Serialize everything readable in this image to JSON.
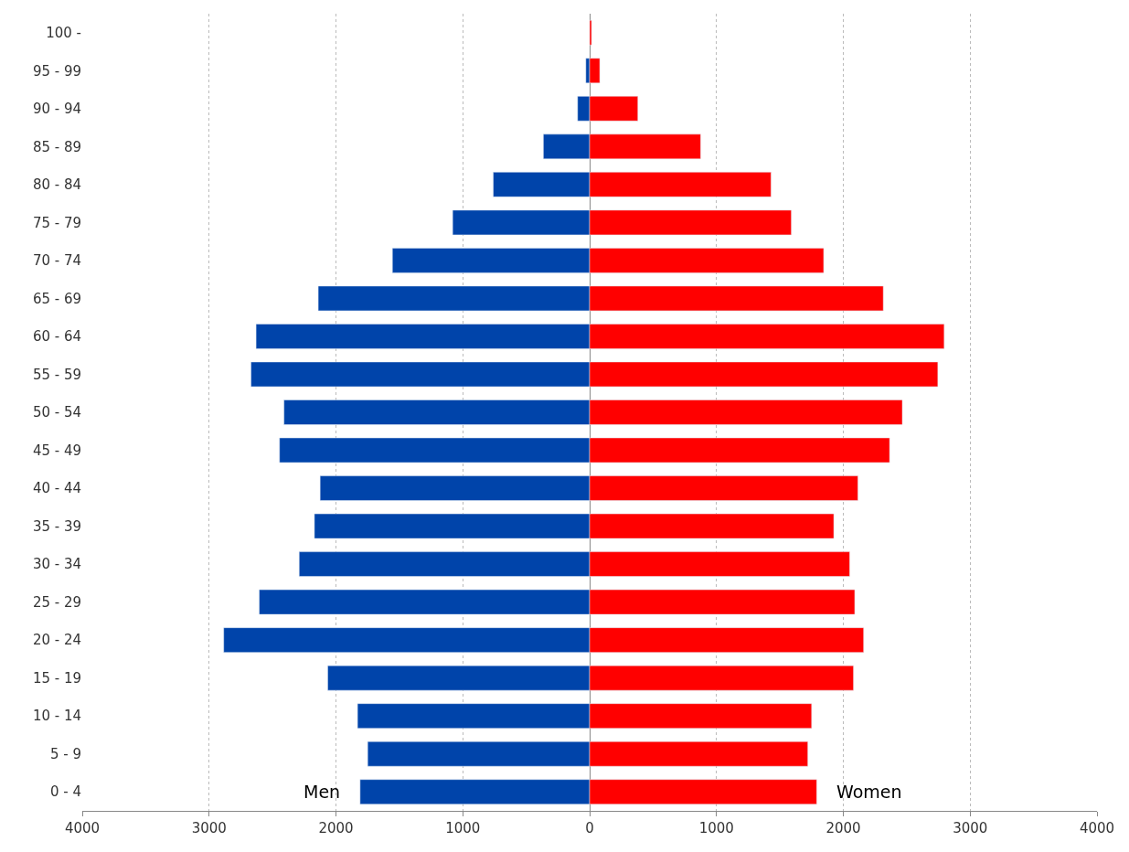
{
  "chart_data": {
    "type": "bar",
    "orientation": "horizontal",
    "categories": [
      "100 -",
      "95 - 99",
      "90 - 94",
      "85 - 89",
      "80 - 84",
      "75 - 79",
      "70 - 74",
      "65 - 69",
      "60 - 64",
      "55 - 59",
      "50 - 54",
      "45 - 49",
      "40 - 44",
      "35 - 39",
      "30 - 34",
      "25 - 29",
      "20 - 24",
      "15 - 19",
      "10 - 14",
      "5 - 9",
      "0 - 4"
    ],
    "series": [
      {
        "name": "Men",
        "color": "#0044aa",
        "values": [
          null,
          -30,
          -95,
          -365,
          -760,
          -1080,
          -1555,
          -2140,
          -2630,
          -2670,
          -2410,
          -2445,
          -2125,
          -2170,
          -2290,
          -2605,
          -2885,
          -2065,
          -1830,
          -1750,
          -1810
        ]
      },
      {
        "name": "Women",
        "color": "#ff0000",
        "values": [
          15,
          80,
          380,
          875,
          1430,
          1590,
          1845,
          2315,
          2795,
          2745,
          2465,
          2365,
          2115,
          1925,
          2050,
          2090,
          2160,
          2080,
          1750,
          1720,
          1790
        ]
      }
    ],
    "xlim": [
      -4000,
      4000
    ],
    "xticks": [
      {
        "value": -4000,
        "label": "4000"
      },
      {
        "value": -3000,
        "label": "3000"
      },
      {
        "value": -2000,
        "label": "2000"
      },
      {
        "value": -1000,
        "label": "1000"
      },
      0,
      1000,
      2000,
      3000,
      4000
    ],
    "grid": "x",
    "legend": false,
    "stacked": true
  }
}
